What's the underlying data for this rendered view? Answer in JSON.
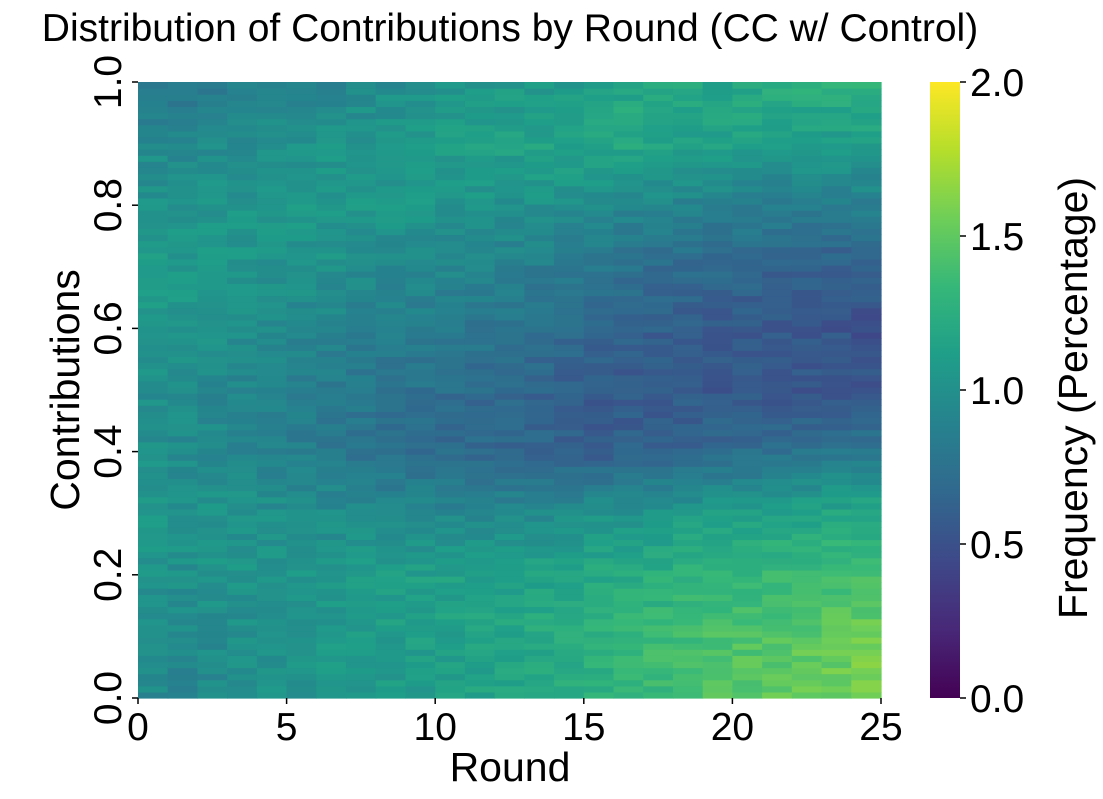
{
  "chart_data": {
    "type": "heatmap",
    "title": "Distribution of Contributions by Round (CC w/ Control)",
    "xlabel": "Round",
    "ylabel": "Contributions",
    "colorbar_label": "Frequency (Percentage)",
    "colormap": "viridis",
    "colormap_stops": [
      "#440154",
      "#482878",
      "#3e4989",
      "#31688e",
      "#26828e",
      "#1f9e89",
      "#35b779",
      "#6ece58",
      "#b5de2b",
      "#fde725"
    ],
    "value_range": [
      0,
      2
    ],
    "xlim": [
      0,
      25
    ],
    "ylim": [
      0,
      1
    ],
    "x_ticks": [
      0,
      5,
      10,
      15,
      20,
      25
    ],
    "x_tick_labels": [
      "0",
      "5",
      "10",
      "15",
      "20",
      "25"
    ],
    "y_ticks": [
      0,
      0.2,
      0.4,
      0.6,
      0.8,
      1
    ],
    "y_tick_labels": [
      "0.0",
      "0.2",
      "0.4",
      "0.6",
      "0.8",
      "1.0"
    ],
    "cbar_ticks": [
      0,
      0.5,
      1,
      1.5,
      2
    ],
    "cbar_tick_labels": [
      "0.0",
      "0.5",
      "1.0",
      "1.5",
      "2.0"
    ],
    "rounds": [
      0,
      1,
      2,
      3,
      4,
      5,
      6,
      7,
      8,
      9,
      10,
      11,
      12,
      13,
      14,
      15,
      16,
      17,
      18,
      19,
      20,
      21,
      22,
      23,
      24
    ],
    "contribution_bins": [
      0.0,
      0.1,
      0.2,
      0.3,
      0.4,
      0.5,
      0.6,
      0.7,
      0.8,
      0.9,
      1.0
    ],
    "values": [
      [
        0.95,
        0.92,
        0.94,
        0.98,
        1.0,
        1.02,
        1.05,
        1.07,
        1.08,
        1.1,
        1.12,
        1.14,
        1.17,
        1.2,
        1.24,
        1.28,
        1.32,
        1.35,
        1.4,
        1.45,
        1.48,
        1.5,
        1.53,
        1.56,
        1.62
      ],
      [
        0.98,
        0.96,
        0.98,
        1.0,
        1.02,
        1.04,
        1.06,
        1.08,
        1.1,
        1.12,
        1.13,
        1.15,
        1.18,
        1.21,
        1.25,
        1.28,
        1.32,
        1.35,
        1.38,
        1.42,
        1.44,
        1.46,
        1.48,
        1.5,
        1.55
      ],
      [
        1.02,
        1.0,
        1.02,
        1.03,
        1.05,
        1.06,
        1.07,
        1.08,
        1.1,
        1.12,
        1.13,
        1.14,
        1.15,
        1.17,
        1.18,
        1.2,
        1.22,
        1.25,
        1.28,
        1.3,
        1.32,
        1.34,
        1.36,
        1.38,
        1.4
      ],
      [
        1.05,
        1.02,
        1.03,
        1.02,
        1.0,
        0.98,
        0.97,
        0.95,
        0.94,
        0.93,
        0.92,
        0.92,
        0.93,
        0.95,
        0.97,
        1.0,
        1.02,
        1.05,
        1.08,
        1.1,
        1.12,
        1.14,
        1.16,
        1.18,
        1.2
      ],
      [
        1.0,
        0.96,
        0.95,
        0.92,
        0.88,
        0.85,
        0.82,
        0.78,
        0.74,
        0.72,
        0.7,
        0.68,
        0.66,
        0.64,
        0.62,
        0.6,
        0.62,
        0.64,
        0.66,
        0.68,
        0.72,
        0.74,
        0.76,
        0.78,
        0.8
      ],
      [
        0.98,
        0.96,
        0.94,
        0.92,
        0.88,
        0.85,
        0.82,
        0.8,
        0.78,
        0.75,
        0.72,
        0.7,
        0.68,
        0.64,
        0.62,
        0.58,
        0.56,
        0.56,
        0.55,
        0.55,
        0.56,
        0.55,
        0.54,
        0.52,
        0.54
      ],
      [
        1.05,
        1.02,
        1.0,
        0.98,
        0.95,
        0.92,
        0.9,
        0.88,
        0.86,
        0.84,
        0.8,
        0.78,
        0.76,
        0.72,
        0.68,
        0.65,
        0.62,
        0.6,
        0.58,
        0.58,
        0.56,
        0.55,
        0.54,
        0.52,
        0.5
      ],
      [
        1.08,
        1.06,
        1.05,
        1.04,
        1.03,
        1.02,
        1.0,
        0.98,
        0.96,
        0.95,
        0.93,
        0.9,
        0.88,
        0.85,
        0.82,
        0.78,
        0.75,
        0.72,
        0.7,
        0.68,
        0.66,
        0.64,
        0.62,
        0.6,
        0.62
      ],
      [
        1.02,
        1.02,
        1.03,
        1.04,
        1.05,
        1.06,
        1.07,
        1.06,
        1.05,
        1.05,
        1.04,
        1.03,
        1.02,
        1.0,
        0.98,
        0.96,
        0.94,
        0.92,
        0.9,
        0.88,
        0.86,
        0.85,
        0.84,
        0.84,
        0.86
      ],
      [
        0.95,
        0.95,
        0.96,
        0.98,
        1.0,
        1.02,
        1.04,
        1.05,
        1.06,
        1.08,
        1.1,
        1.12,
        1.13,
        1.15,
        1.16,
        1.17,
        1.18,
        1.18,
        1.15,
        1.14,
        1.12,
        1.1,
        1.08,
        1.08,
        1.1
      ],
      [
        0.75,
        0.78,
        0.8,
        0.85,
        0.88,
        0.9,
        0.92,
        0.95,
        0.98,
        1.0,
        1.02,
        1.04,
        1.06,
        1.08,
        1.1,
        1.14,
        1.18,
        1.2,
        1.18,
        1.16,
        1.2,
        1.22,
        1.24,
        1.28,
        1.3
      ]
    ]
  }
}
